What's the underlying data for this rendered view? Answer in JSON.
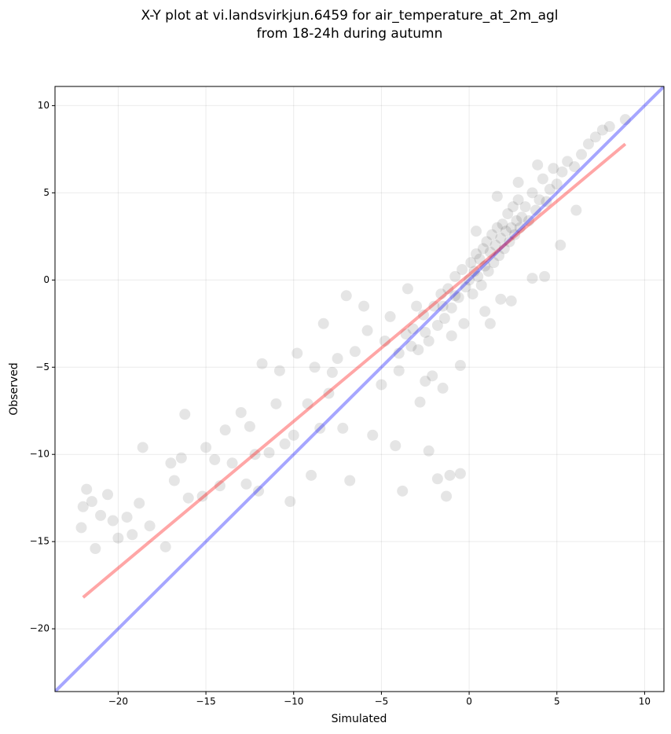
{
  "chart_data": {
    "type": "scatter",
    "title": [
      "X-Y plot at vi.landsvirkjun.6459 for air_temperature_at_2m_agl",
      "from 18-24h during autumn"
    ],
    "xlabel": "Simulated",
    "ylabel": "Observed",
    "xlim": [
      -23.6,
      11.1
    ],
    "ylim": [
      -23.6,
      11.1
    ],
    "xticks": [
      {
        "value": -20,
        "label": "−20"
      },
      {
        "value": -15,
        "label": "−15"
      },
      {
        "value": -10,
        "label": "−10"
      },
      {
        "value": -5,
        "label": "−5"
      },
      0,
      5,
      10
    ],
    "yticks": [
      {
        "value": -20,
        "label": "−20"
      },
      {
        "value": -15,
        "label": "−15"
      },
      {
        "value": -10,
        "label": "−10"
      },
      {
        "value": -5,
        "label": "−5"
      },
      0,
      5,
      10
    ],
    "grid": true,
    "color": "#000000",
    "alpha": 0.1,
    "x": [
      -22,
      -22.1,
      -21.8,
      -21.5,
      -21.3,
      -21,
      -20.6,
      -20.3,
      -20,
      -19.5,
      -19.2,
      -18.8,
      -18.6,
      -18.2,
      -17.3,
      -17,
      -16.8,
      -16.4,
      -16.2,
      -16,
      -15.2,
      -15,
      -14.5,
      -14.2,
      -13.9,
      -13.5,
      -13,
      -12.7,
      -12.5,
      -12.2,
      -12,
      -11.8,
      -11.4,
      -11,
      -10.8,
      -10.5,
      -10.2,
      -10,
      -9.8,
      -9.2,
      -9,
      -8.8,
      -8.5,
      -8.3,
      -8,
      -7.8,
      -7.5,
      -7.2,
      -7,
      -6.8,
      -6.5,
      -6,
      -5.8,
      -5.5,
      -5,
      -4.8,
      -4.5,
      -4.2,
      -4,
      -3.8,
      -3.5,
      -3.3,
      -3,
      -2.8,
      -2.5,
      -2.3,
      -2.1,
      -1.8,
      -1.5,
      -1.3,
      -1.1,
      -0.8,
      -0.5,
      -0.3,
      -4,
      -3.6,
      -3.2,
      -2.9,
      -2.6,
      -2.3,
      -2,
      -1.8,
      -1.6,
      -1.4,
      -1.2,
      -1,
      -0.8,
      -0.6,
      -0.4,
      -0.2,
      0,
      0.1,
      0.2,
      0.3,
      0.4,
      0.5,
      0.6,
      0.7,
      0.8,
      0.9,
      1,
      1.1,
      1.2,
      1.3,
      1.4,
      1.5,
      1.6,
      1.7,
      1.8,
      1.9,
      2,
      2.1,
      2.2,
      2.3,
      2.4,
      2.5,
      2.6,
      2.7,
      2.8,
      2.9,
      3,
      3.2,
      3.4,
      3.6,
      3.8,
      4,
      4.2,
      4.4,
      4.6,
      4.8,
      5,
      5.3,
      5.6,
      6,
      6.4,
      6.8,
      7.2,
      7.6,
      8,
      8.9,
      5.2,
      4.3,
      3.6,
      2.4,
      1.2,
      -0.5,
      -1.5,
      -2.5,
      0.4,
      1.6,
      2.8,
      3.9,
      0.9,
      -1,
      1.8,
      6.1
    ],
    "values": [
      -13,
      -14.2,
      -12,
      -12.7,
      -15.4,
      -13.5,
      -12.3,
      -13.8,
      -14.8,
      -13.6,
      -14.6,
      -12.8,
      -9.6,
      -14.1,
      -15.3,
      -10.5,
      -11.5,
      -10.2,
      -7.7,
      -12.5,
      -12.4,
      -9.6,
      -10.3,
      -11.8,
      -8.6,
      -10.5,
      -7.6,
      -11.7,
      -8.4,
      -10,
      -12.1,
      -4.8,
      -9.9,
      -7.1,
      -5.2,
      -9.4,
      -12.7,
      -8.9,
      -4.2,
      -7.1,
      -11.2,
      -5,
      -8.5,
      -2.5,
      -6.5,
      -5.3,
      -4.5,
      -8.5,
      -0.9,
      -11.5,
      -4.1,
      -1.5,
      -2.9,
      -8.9,
      -6,
      -3.5,
      -2.1,
      -9.5,
      -5.2,
      -12.1,
      -0.5,
      -3.8,
      -1.5,
      -7,
      -3,
      -9.8,
      -5.5,
      -11.4,
      -1.5,
      -12.4,
      -11.2,
      -0.9,
      -11.1,
      -2.5,
      -4.2,
      -3.1,
      -2.8,
      -4,
      -2,
      -3.5,
      -1.5,
      -2.6,
      -0.8,
      -2.2,
      -0.5,
      -1.6,
      0.2,
      -1,
      0.6,
      -0.4,
      0,
      1,
      -0.8,
      0.5,
      1.5,
      0.2,
      1.2,
      -0.3,
      1.8,
      0.8,
      2.2,
      0.5,
      1.6,
      2.6,
      1,
      2,
      3,
      1.4,
      2.4,
      3.2,
      1.8,
      2.8,
      3.8,
      2.2,
      3,
      4.2,
      2.6,
      3.4,
      4.6,
      3,
      3.6,
      4.2,
      3.4,
      5,
      4,
      4.6,
      5.8,
      4.5,
      5.2,
      6.4,
      5.5,
      6.2,
      6.8,
      6.5,
      7.2,
      7.8,
      8.2,
      8.6,
      8.8,
      9.2,
      2,
      0.2,
      0.1,
      -1.2,
      -2.5,
      -4.9,
      -6.2,
      -5.8,
      2.8,
      4.8,
      5.6,
      6.6,
      -1.8,
      -3.2,
      -1.1,
      4
    ]
  },
  "lines": [
    {
      "color": "#0000ff",
      "x": [
        -23.6,
        11.1
      ],
      "values": [
        -23.6,
        11.1
      ]
    },
    {
      "color": "#ff0000",
      "x": [
        -22,
        8.9
      ],
      "values": [
        -18.2,
        7.8
      ]
    }
  ]
}
